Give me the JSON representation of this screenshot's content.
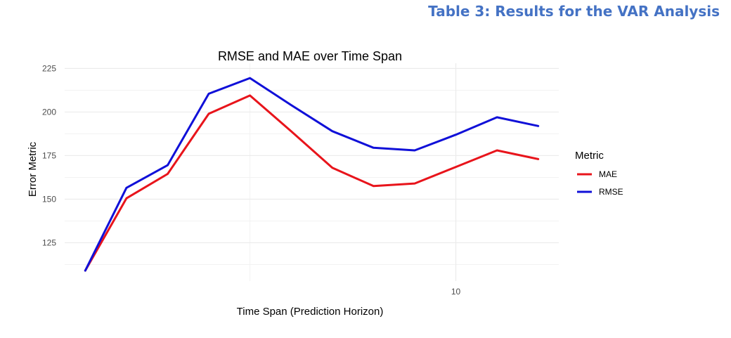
{
  "caption": "Table 3: Results for the VAR Analysis",
  "chart_data": {
    "type": "line",
    "title": "RMSE and MAE over Time Span",
    "xlabel": "Time Span (Prediction Horizon)",
    "ylabel": "Error Metric",
    "x": [
      1,
      2,
      3,
      4,
      5,
      6,
      7,
      8,
      9,
      10,
      11,
      12
    ],
    "xlim": [
      0.5,
      12.5
    ],
    "ylim": [
      103,
      228
    ],
    "x_ticks": [
      10
    ],
    "x_ticklabels": [
      "10"
    ],
    "y_ticks": [
      125,
      150,
      175,
      200,
      225
    ],
    "y_ticklabels": [
      "125",
      "150",
      "175",
      "200",
      "225"
    ],
    "grid": true,
    "legend": {
      "title": "Metric",
      "position": "right"
    },
    "series": [
      {
        "name": "MAE",
        "color": "#e8141b",
        "values": [
          109,
          150.5,
          164.5,
          199,
          209.5,
          189,
          168,
          157.5,
          159,
          168.5,
          178,
          173
        ]
      },
      {
        "name": "RMSE",
        "color": "#1010d8",
        "values": [
          109,
          156.5,
          169.5,
          210.5,
          219.5,
          204,
          189,
          179.5,
          178,
          187,
          197,
          192
        ]
      }
    ]
  }
}
